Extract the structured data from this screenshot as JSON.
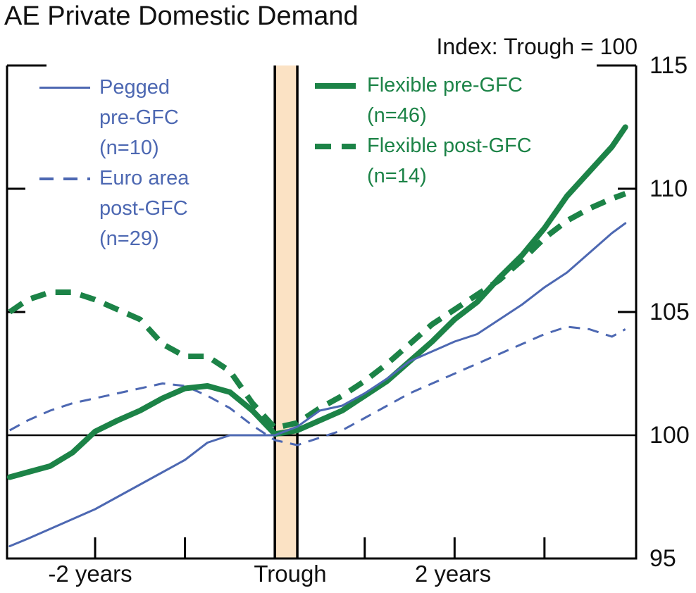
{
  "header": {
    "title": "AE Private Domestic Demand",
    "subtitle": "Index: Trough = 100"
  },
  "axis": {
    "y_labels": [
      "115",
      "110",
      "105",
      "100",
      "95"
    ],
    "x_labels": [
      "-2 years",
      "Trough",
      "2 years"
    ]
  },
  "legend": {
    "items": [
      {
        "id": "pegged-pre-gfc",
        "style": "solid",
        "color": "blue",
        "lines": [
          "Pegged",
          "pre-GFC",
          "(n=10)"
        ]
      },
      {
        "id": "euro-area-post-gfc",
        "style": "dashed",
        "color": "blue",
        "lines": [
          "Euro area",
          "post-GFC",
          "(n=29)"
        ]
      },
      {
        "id": "flexible-pre-gfc",
        "style": "solid",
        "color": "green",
        "lines": [
          "Flexible pre-GFC",
          "(n=46)"
        ]
      },
      {
        "id": "flexible-post-gfc",
        "style": "dashed",
        "color": "green",
        "lines": [
          "Flexible post-GFC",
          "(n=14)"
        ]
      }
    ]
  },
  "colors": {
    "blue": "#4d68b2",
    "green": "#1c8347",
    "band_fill": "#fbe2c4",
    "axis": "#000000"
  },
  "chart_data": {
    "type": "line",
    "title": "AE Private Domestic Demand",
    "subtitle": "Index: Trough = 100",
    "x_axis": {
      "unit": "years relative to trough",
      "range": [
        -2.98,
        4.02
      ],
      "tick_t": [
        -2,
        -1,
        1,
        2,
        3
      ],
      "labels": [
        {
          "text": "-2 years",
          "t": -2
        },
        {
          "text": "Trough",
          "t": 0.17
        },
        {
          "text": "2 years",
          "t": 2
        }
      ]
    },
    "y_axis": {
      "range": [
        95,
        115
      ],
      "ticks": [
        95,
        100,
        105,
        110,
        115
      ],
      "reference_line": 100
    },
    "trough_band": {
      "t0": 0,
      "t1": 0.25
    },
    "t": [
      -2.95,
      -2.75,
      -2.5,
      -2.25,
      -2,
      -1.75,
      -1.5,
      -1.25,
      -1,
      -0.75,
      -0.5,
      -0.25,
      0,
      0.25,
      0.5,
      0.75,
      1,
      1.25,
      1.5,
      1.75,
      2,
      2.25,
      2.5,
      2.75,
      3,
      3.25,
      3.5,
      3.75,
      3.9
    ],
    "series": [
      {
        "id": "euro-area-post-gfc",
        "name": "Euro area post-GFC (n=29)",
        "color_key": "blue",
        "dash": true,
        "dash_pattern": "16 11",
        "width": 3,
        "z": 1,
        "values": [
          100.2,
          100.6,
          101.0,
          101.3,
          101.5,
          101.7,
          101.9,
          102.1,
          102.0,
          101.6,
          101.1,
          100.4,
          99.8,
          99.6,
          99.9,
          100.2,
          100.7,
          101.2,
          101.7,
          102.1,
          102.5,
          102.9,
          103.3,
          103.7,
          104.1,
          104.4,
          104.3,
          104.0,
          104.3
        ]
      },
      {
        "id": "flexible-post-gfc",
        "name": "Flexible post-GFC (n=14)",
        "color_key": "green",
        "dash": true,
        "dash_pattern": "22 14",
        "width": 8,
        "z": 2,
        "values": [
          105.0,
          105.5,
          105.8,
          105.8,
          105.5,
          105.1,
          104.7,
          103.7,
          103.2,
          103.2,
          102.6,
          101.3,
          100.3,
          100.5,
          101.1,
          101.6,
          102.2,
          102.9,
          103.7,
          104.5,
          105.1,
          105.7,
          106.3,
          107.1,
          108.0,
          108.7,
          109.2,
          109.6,
          109.8
        ]
      },
      {
        "id": "flexible-pre-gfc",
        "name": "Flexible pre-GFC (n=46)",
        "color_key": "green",
        "dash": false,
        "dash_pattern": "",
        "width": 8,
        "z": 3,
        "values": [
          98.3,
          98.5,
          98.75,
          99.3,
          100.15,
          100.6,
          101.0,
          101.5,
          101.9,
          102.0,
          101.75,
          101.0,
          100.05,
          100.2,
          100.6,
          101.0,
          101.6,
          102.2,
          103.0,
          103.8,
          104.7,
          105.4,
          106.4,
          107.3,
          108.4,
          109.7,
          110.7,
          111.7,
          112.5
        ]
      },
      {
        "id": "pegged-pre-gfc",
        "name": "Pegged pre-GFC (n=10)",
        "color_key": "blue",
        "dash": false,
        "dash_pattern": "",
        "width": 3,
        "z": 4,
        "values": [
          95.5,
          95.8,
          96.2,
          96.6,
          97.0,
          97.5,
          98.0,
          98.5,
          99.0,
          99.7,
          100.0,
          100.0,
          100.0,
          100.35,
          101.0,
          101.2,
          101.7,
          102.3,
          103.0,
          103.4,
          103.8,
          104.1,
          104.7,
          105.3,
          106.0,
          106.6,
          107.4,
          108.2,
          108.6
        ]
      }
    ]
  }
}
